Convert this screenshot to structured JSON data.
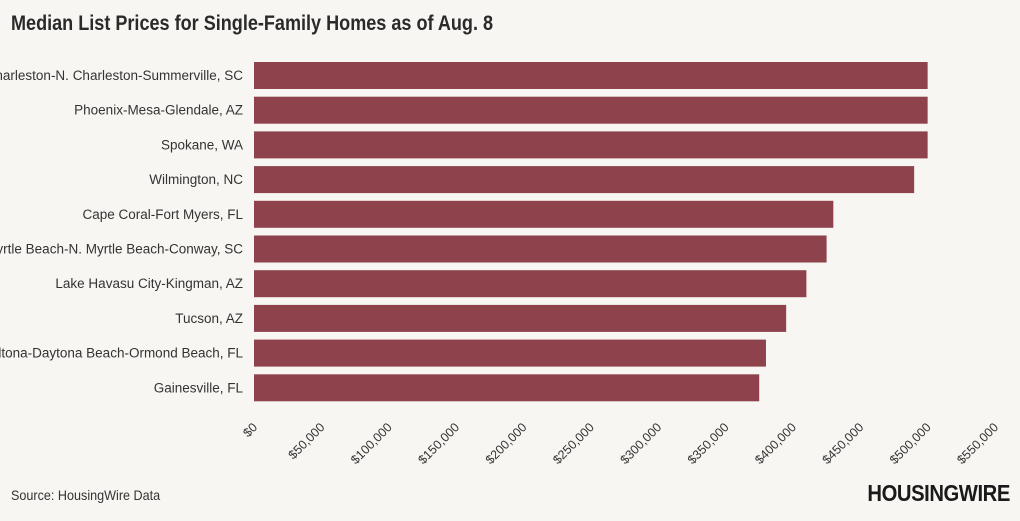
{
  "header": {
    "title": "Median List Prices for Single-Family Homes as of Aug. 8"
  },
  "footer": {
    "source": "Source: HousingWire Data",
    "brand": "HOUSINGWIRE"
  },
  "colors": {
    "bar": "#8e424c",
    "background": "#f8f6f2"
  },
  "chart_data": {
    "type": "bar",
    "orientation": "horizontal",
    "title": "Median List Prices for Single-Family Homes as of Aug. 8",
    "categories": [
      "Charleston-N. Charleston-Summerville, SC",
      "Phoenix-Mesa-Glendale, AZ",
      "Spokane, WA",
      "Wilmington, NC",
      "Cape Coral-Fort Myers, FL",
      "Myrtle Beach-N. Myrtle Beach-Conway, SC",
      "Lake Havasu City-Kingman, AZ",
      "Tucson, AZ",
      "Deltona-Daytona Beach-Ormond Beach, FL",
      "Gainesville, FL"
    ],
    "values": [
      500000,
      500000,
      500000,
      490000,
      430000,
      425000,
      410000,
      395000,
      380000,
      375000
    ],
    "xlim": [
      0,
      550000
    ],
    "xticks": [
      0,
      50000,
      100000,
      150000,
      200000,
      250000,
      300000,
      350000,
      400000,
      450000,
      500000,
      550000
    ],
    "xtick_labels": [
      "$0",
      "$50,000",
      "$100,000",
      "$150,000",
      "$200,000",
      "$250,000",
      "$300,000",
      "$350,000",
      "$400,000",
      "$450,000",
      "$500,000",
      "$550,000"
    ],
    "xlabel": "",
    "ylabel": "",
    "grid": false,
    "legend": "none",
    "source": "Source: HousingWire Data"
  }
}
